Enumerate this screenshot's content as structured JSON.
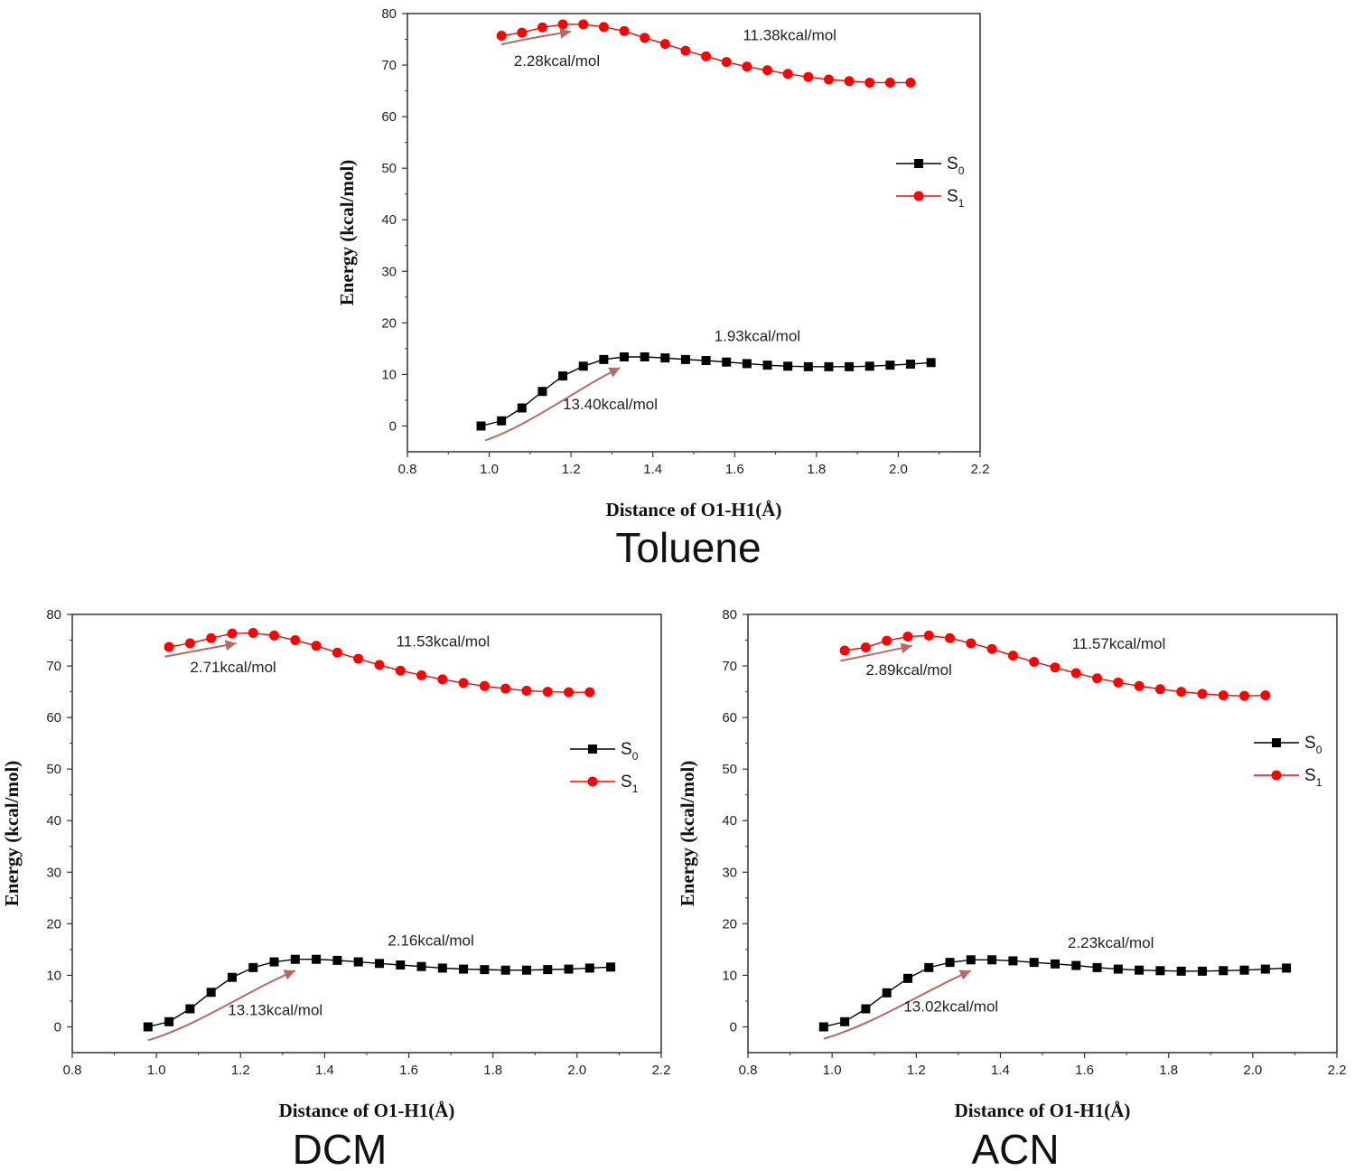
{
  "colors": {
    "s0": "#000000",
    "s1": "#ff0000",
    "arrow": "#b86a60",
    "frame": "#333333"
  },
  "chart_data": [
    {
      "type": "line",
      "title": "Toluene",
      "xlabel": "Distance of O1-H1(Å)",
      "ylabel": "Energy (kcal/mol)",
      "xlim": [
        0.8,
        2.2
      ],
      "ylim": [
        -5,
        80
      ],
      "xticks": [
        "0.8",
        "1.0",
        "1.2",
        "1.4",
        "1.6",
        "1.8",
        "2.0",
        "2.2"
      ],
      "yticks": [
        "0",
        "10",
        "20",
        "30",
        "40",
        "50",
        "60",
        "70",
        "80"
      ],
      "legend": [
        {
          "base": "S",
          "sub": "0"
        },
        {
          "base": "S",
          "sub": "1"
        }
      ],
      "series": [
        {
          "name": "S0",
          "marker": "square",
          "x": [
            0.98,
            1.03,
            1.08,
            1.13,
            1.18,
            1.23,
            1.28,
            1.33,
            1.38,
            1.43,
            1.48,
            1.53,
            1.58,
            1.63,
            1.68,
            1.73,
            1.78,
            1.83,
            1.88,
            1.93,
            1.98,
            2.03,
            2.08
          ],
          "y": [
            0,
            1.0,
            3.5,
            6.7,
            9.7,
            11.6,
            12.9,
            13.4,
            13.4,
            13.2,
            12.9,
            12.7,
            12.4,
            12.1,
            11.8,
            11.6,
            11.5,
            11.5,
            11.5,
            11.6,
            11.8,
            12.0,
            12.3
          ]
        },
        {
          "name": "S1",
          "marker": "circle",
          "x": [
            1.03,
            1.08,
            1.13,
            1.18,
            1.23,
            1.28,
            1.33,
            1.38,
            1.43,
            1.48,
            1.53,
            1.58,
            1.63,
            1.68,
            1.73,
            1.78,
            1.83,
            1.88,
            1.93,
            1.98,
            2.03
          ],
          "y": [
            75.7,
            76.3,
            77.3,
            77.9,
            77.9,
            77.4,
            76.6,
            75.3,
            74.1,
            72.8,
            71.7,
            70.6,
            69.7,
            69.0,
            68.3,
            67.7,
            67.2,
            66.9,
            66.6,
            66.6,
            66.6
          ]
        }
      ],
      "annotations": [
        {
          "text": "11.38kcal/mol",
          "x": 1.62,
          "y": 74.8
        },
        {
          "text": "2.28kcal/mol",
          "x": 1.06,
          "y": 69.8
        },
        {
          "text": "1.93kcal/mol",
          "x": 1.55,
          "y": 16.5
        },
        {
          "text": "13.40kcal/mol",
          "x": 1.18,
          "y": 3.2
        }
      ],
      "arrows": [
        {
          "x": [
            1.03,
            1.1,
            1.2
          ],
          "y": [
            74.0,
            75.3,
            76.5
          ]
        },
        {
          "x": [
            0.99,
            1.1,
            1.22,
            1.32
          ],
          "y": [
            -2.8,
            0.2,
            7.5,
            11.3
          ]
        }
      ]
    },
    {
      "type": "line",
      "title": "DCM",
      "xlabel": "Distance of O1-H1(Å)",
      "ylabel": "Energy (kcal/mol)",
      "xlim": [
        0.8,
        2.2
      ],
      "ylim": [
        -5,
        80
      ],
      "xticks": [
        "0.8",
        "1.0",
        "1.2",
        "1.4",
        "1.6",
        "1.8",
        "2.0",
        "2.2"
      ],
      "yticks": [
        "0",
        "10",
        "20",
        "30",
        "40",
        "50",
        "60",
        "70",
        "80"
      ],
      "legend": [
        {
          "base": "S",
          "sub": "0"
        },
        {
          "base": "S",
          "sub": "1"
        }
      ],
      "series": [
        {
          "name": "S0",
          "marker": "square",
          "x": [
            0.98,
            1.03,
            1.08,
            1.13,
            1.18,
            1.23,
            1.28,
            1.33,
            1.38,
            1.43,
            1.48,
            1.53,
            1.58,
            1.63,
            1.68,
            1.73,
            1.78,
            1.83,
            1.88,
            1.93,
            1.98,
            2.03,
            2.08
          ],
          "y": [
            0,
            1.0,
            3.5,
            6.7,
            9.6,
            11.5,
            12.6,
            13.1,
            13.1,
            12.9,
            12.6,
            12.3,
            12.0,
            11.7,
            11.4,
            11.2,
            11.1,
            11.0,
            11.0,
            11.1,
            11.2,
            11.4,
            11.6
          ]
        },
        {
          "name": "S1",
          "marker": "circle",
          "x": [
            1.03,
            1.08,
            1.13,
            1.18,
            1.23,
            1.28,
            1.33,
            1.38,
            1.43,
            1.48,
            1.53,
            1.58,
            1.63,
            1.68,
            1.73,
            1.78,
            1.83,
            1.88,
            1.93,
            1.98,
            2.03
          ],
          "y": [
            73.7,
            74.4,
            75.4,
            76.3,
            76.4,
            75.9,
            75.0,
            73.9,
            72.6,
            71.4,
            70.2,
            69.1,
            68.2,
            67.4,
            66.7,
            66.1,
            65.6,
            65.2,
            65.0,
            64.9,
            64.9
          ]
        }
      ],
      "annotations": [
        {
          "text": "11.53kcal/mol",
          "x": 1.57,
          "y": 73.8
        },
        {
          "text": "2.71kcal/mol",
          "x": 1.08,
          "y": 68.8
        },
        {
          "text": "2.16kcal/mol",
          "x": 1.55,
          "y": 15.8
        },
        {
          "text": "13.13kcal/mol",
          "x": 1.17,
          "y": 2.3
        }
      ],
      "arrows": [
        {
          "x": [
            1.02,
            1.1,
            1.19
          ],
          "y": [
            71.8,
            73.0,
            74.4
          ]
        },
        {
          "x": [
            0.98,
            1.1,
            1.22,
            1.33
          ],
          "y": [
            -2.6,
            0.3,
            7.2,
            10.9
          ]
        }
      ]
    },
    {
      "type": "line",
      "title": "ACN",
      "xlabel": "Distance of O1-H1(Å)",
      "ylabel": "Energy (kcal/mol)",
      "xlim": [
        0.8,
        2.2
      ],
      "ylim": [
        -5,
        80
      ],
      "xticks": [
        "0.8",
        "1.0",
        "1.2",
        "1.4",
        "1.6",
        "1.8",
        "2.0",
        "2.2"
      ],
      "yticks": [
        "0",
        "10",
        "20",
        "30",
        "40",
        "50",
        "60",
        "70",
        "80"
      ],
      "legend": [
        {
          "base": "S",
          "sub": "0"
        },
        {
          "base": "S",
          "sub": "1"
        }
      ],
      "series": [
        {
          "name": "S0",
          "marker": "square",
          "x": [
            0.98,
            1.03,
            1.08,
            1.13,
            1.18,
            1.23,
            1.28,
            1.33,
            1.38,
            1.43,
            1.48,
            1.53,
            1.58,
            1.63,
            1.68,
            1.73,
            1.78,
            1.83,
            1.88,
            1.93,
            1.98,
            2.03,
            2.08
          ],
          "y": [
            0,
            1.0,
            3.5,
            6.6,
            9.4,
            11.5,
            12.5,
            13.0,
            13.0,
            12.8,
            12.5,
            12.2,
            11.9,
            11.5,
            11.2,
            11.0,
            10.9,
            10.8,
            10.8,
            10.9,
            11.0,
            11.2,
            11.4
          ]
        },
        {
          "name": "S1",
          "marker": "circle",
          "x": [
            1.03,
            1.08,
            1.13,
            1.18,
            1.23,
            1.28,
            1.33,
            1.38,
            1.43,
            1.48,
            1.53,
            1.58,
            1.63,
            1.68,
            1.73,
            1.78,
            1.83,
            1.88,
            1.93,
            1.98,
            2.03
          ],
          "y": [
            73.0,
            73.6,
            74.9,
            75.7,
            75.9,
            75.4,
            74.4,
            73.3,
            72.0,
            70.8,
            69.7,
            68.6,
            67.6,
            66.8,
            66.1,
            65.5,
            65.0,
            64.6,
            64.3,
            64.2,
            64.3
          ]
        }
      ],
      "annotations": [
        {
          "text": "11.57kcal/mol",
          "x": 1.57,
          "y": 73.3
        },
        {
          "text": "2.89kcal/mol",
          "x": 1.08,
          "y": 68.3
        },
        {
          "text": "2.23kcal/mol",
          "x": 1.56,
          "y": 15.3
        },
        {
          "text": "13.02kcal/mol",
          "x": 1.17,
          "y": 3.0
        }
      ],
      "arrows": [
        {
          "x": [
            1.02,
            1.1,
            1.19
          ],
          "y": [
            71.0,
            72.3,
            73.9
          ]
        },
        {
          "x": [
            0.98,
            1.1,
            1.22,
            1.33
          ],
          "y": [
            -2.3,
            0.5,
            7.0,
            10.9
          ]
        }
      ]
    }
  ]
}
